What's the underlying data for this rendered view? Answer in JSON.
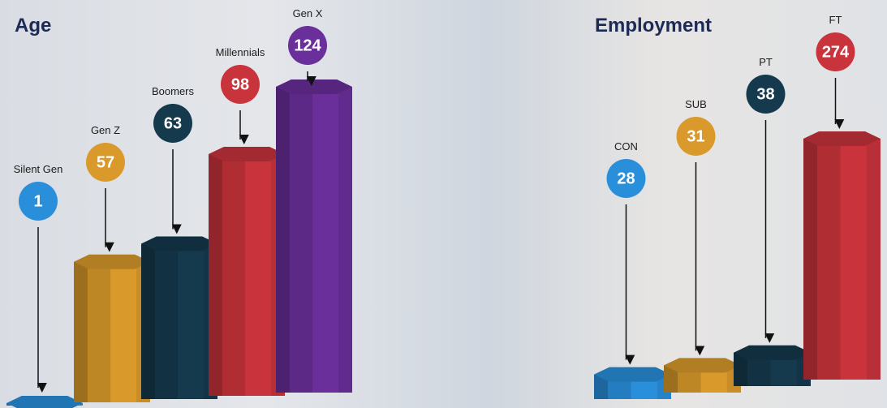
{
  "chart_data": [
    {
      "type": "bar",
      "title": "Age",
      "categories": [
        "Silent Gen",
        "Gen Z",
        "Boomers",
        "Millennials",
        "Gen X"
      ],
      "values": [
        1,
        57,
        63,
        98,
        124
      ],
      "colors": [
        "#2a8fdb",
        "#d99a2b",
        "#15394d",
        "#c9343c",
        "#6a2f9a"
      ]
    },
    {
      "type": "bar",
      "title": "Employment",
      "categories": [
        "CON",
        "SUB",
        "PT",
        "FT"
      ],
      "values": [
        28,
        31,
        38,
        274
      ],
      "colors": [
        "#2a8fdb",
        "#d99a2b",
        "#15394d",
        "#c9343c"
      ]
    }
  ]
}
